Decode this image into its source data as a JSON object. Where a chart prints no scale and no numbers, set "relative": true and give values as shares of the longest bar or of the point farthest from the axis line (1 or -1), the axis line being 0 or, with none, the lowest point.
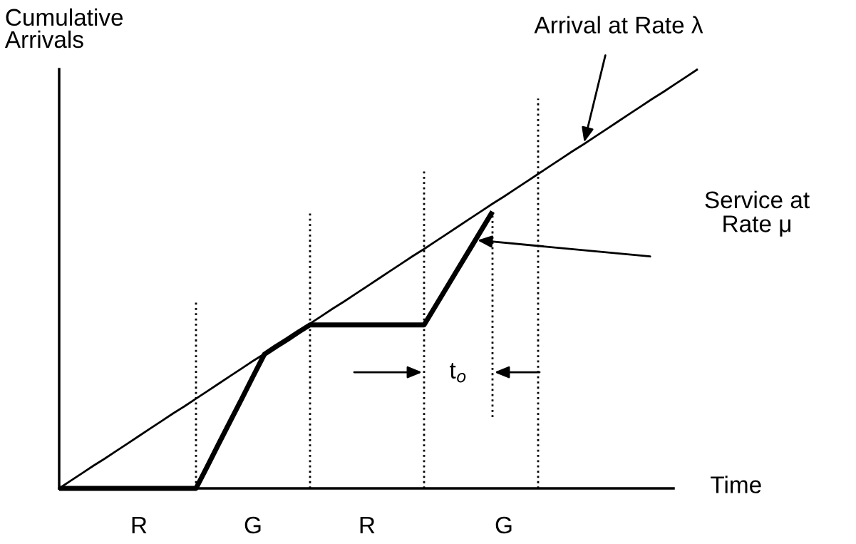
{
  "chart_data": {
    "type": "line",
    "relative": true,
    "xlabel": "Time",
    "ylabel": "Cumulative\nArrivals",
    "categories": [
      null,
      null,
      null,
      null,
      null,
      null,
      null,
      "R",
      null,
      null,
      null,
      null,
      null,
      null,
      null,
      null,
      null,
      "G",
      null,
      null,
      null,
      null,
      null,
      null,
      null,
      null,
      null,
      "R",
      null,
      null,
      null,
      null,
      null,
      null,
      null,
      null,
      null,
      null,
      null,
      "G",
      null,
      null,
      null,
      null,
      null,
      null,
      null,
      null,
      null,
      null,
      null,
      null,
      null,
      null,
      null,
      null,
      null
    ],
    "series": [
      {
        "color": "#000000",
        "values": [
          0,
          0.018,
          0.036,
          0.054,
          0.071,
          0.089,
          0.107,
          0.125,
          0.143,
          0.161,
          0.179,
          0.196,
          0.214,
          0.232,
          0.25,
          0.268,
          0.286,
          0.304,
          0.321,
          0.339,
          0.357,
          0.375,
          0.393,
          0.411,
          0.429,
          0.446,
          0.464,
          0.482,
          0.5,
          0.518,
          0.536,
          0.554,
          0.571,
          0.589,
          0.607,
          0.625,
          0.643,
          0.661,
          0.679,
          0.696,
          0.714,
          0.732,
          0.75,
          0.768,
          0.786,
          0.804,
          0.821,
          0.839,
          0.857,
          0.875,
          0.893,
          0.911,
          0.929,
          0.946,
          0.964,
          0.982,
          1
        ]
      },
      {
        "color": "#000000",
        "values": [
          0,
          0,
          0,
          0,
          0,
          0,
          0,
          0,
          0,
          0,
          0,
          0,
          0,
          0.053,
          0.107,
          0.16,
          0.213,
          0.267,
          0.32,
          0.338,
          0.355,
          0.373,
          0.39,
          0.39,
          0.39,
          0.39,
          0.39,
          0.39,
          0.39,
          0.39,
          0.39,
          0.39,
          0.39,
          0.435,
          0.48,
          0.525,
          0.57,
          0.615,
          0.66,
          null,
          null,
          null,
          null,
          null,
          null,
          null,
          null,
          null,
          null,
          null,
          null,
          null,
          null,
          null,
          null,
          null,
          null
        ]
      }
    ],
    "annotations": [
      "Arrival at Rate λ",
      "Service at\nRate μ",
      "t$_{o}$"
    ],
    "grid": false,
    "legend": false,
    "marker": "none",
    "line_style": "solid"
  }
}
